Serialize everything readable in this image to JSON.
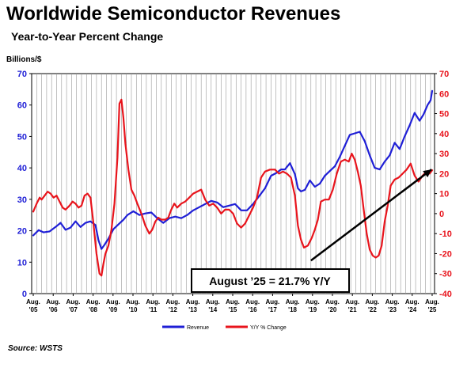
{
  "header": {
    "title": "Worldwide Semiconductor Revenues",
    "subtitle": "Year-to-Year Percent Change",
    "unit_label": "Billions/$"
  },
  "source": "Source: WSTS",
  "annotation": "August ’25 = 21.7% Y/Y",
  "colors": {
    "revenue": "#1f1fd6",
    "yoy": "#e8141c",
    "grid": "#9a9a9a",
    "left_axis": "#1f1fd6",
    "right_axis": "#e8141c"
  },
  "chart_data": {
    "type": "line",
    "xlim": [
      2005.5,
      2025.7
    ],
    "x_ticks": [
      {
        "x": 2005.58,
        "month": "Aug.",
        "year": "'05"
      },
      {
        "x": 2006.58,
        "month": "Aug.",
        "year": "'06"
      },
      {
        "x": 2007.58,
        "month": "Aug.",
        "year": "'07"
      },
      {
        "x": 2008.58,
        "month": "Aug.",
        "year": "'08"
      },
      {
        "x": 2009.58,
        "month": "Aug.",
        "year": "'09"
      },
      {
        "x": 2010.58,
        "month": "Aug.",
        "year": "'10"
      },
      {
        "x": 2011.58,
        "month": "Aug.",
        "year": "'11"
      },
      {
        "x": 2012.58,
        "month": "Aug.",
        "year": "'12"
      },
      {
        "x": 2013.58,
        "month": "Aug.",
        "year": "'13"
      },
      {
        "x": 2014.58,
        "month": "Aug.",
        "year": "'14"
      },
      {
        "x": 2015.58,
        "month": "Aug.",
        "year": "'15"
      },
      {
        "x": 2016.58,
        "month": "Aug.",
        "year": "'16"
      },
      {
        "x": 2017.58,
        "month": "Aug.",
        "year": "'17"
      },
      {
        "x": 2018.58,
        "month": "Aug.",
        "year": "'18"
      },
      {
        "x": 2019.58,
        "month": "Aug.",
        "year": "'19"
      },
      {
        "x": 2020.58,
        "month": "Aug.",
        "year": "'20"
      },
      {
        "x": 2021.58,
        "month": "Aug.",
        "year": "'21"
      },
      {
        "x": 2022.58,
        "month": "Aug.",
        "year": "'22"
      },
      {
        "x": 2023.58,
        "month": "Aug.",
        "year": "'23"
      },
      {
        "x": 2024.58,
        "month": "Aug.",
        "year": "'24"
      },
      {
        "x": 2025.58,
        "month": "Aug.",
        "year": "'25"
      }
    ],
    "y_left": {
      "range": [
        0,
        70
      ],
      "ticks": [
        0,
        10,
        20,
        30,
        40,
        50,
        60,
        70
      ]
    },
    "y_right": {
      "range": [
        -40,
        70
      ],
      "ticks": [
        -40,
        -30,
        -20,
        -10,
        0,
        10,
        20,
        30,
        40,
        50,
        60,
        70
      ]
    },
    "grid": "vertical",
    "legend": {
      "placement": "bottom-center",
      "entries": [
        "Revenue",
        "Y/Y % Change"
      ]
    },
    "series": [
      {
        "name": "Revenue",
        "axis": "left",
        "x": [
          2005.58,
          2005.85,
          2006.1,
          2006.4,
          2006.7,
          2006.95,
          2007.2,
          2007.45,
          2007.7,
          2007.95,
          2008.2,
          2008.45,
          2008.7,
          2008.85,
          2009.0,
          2009.15,
          2009.35,
          2009.6,
          2009.85,
          2010.1,
          2010.3,
          2010.6,
          2010.9,
          2011.2,
          2011.5,
          2011.8,
          2012.1,
          2012.4,
          2012.7,
          2013.0,
          2013.3,
          2013.6,
          2013.9,
          2014.2,
          2014.5,
          2014.8,
          2015.1,
          2015.4,
          2015.7,
          2016.0,
          2016.3,
          2016.6,
          2016.9,
          2017.2,
          2017.5,
          2017.8,
          2018.0,
          2018.2,
          2018.45,
          2018.7,
          2018.85,
          2019.0,
          2019.2,
          2019.45,
          2019.7,
          2019.95,
          2020.2,
          2020.45,
          2020.7,
          2020.95,
          2021.2,
          2021.45,
          2021.7,
          2021.95,
          2022.2,
          2022.45,
          2022.7,
          2022.95,
          2023.2,
          2023.45,
          2023.7,
          2023.95,
          2024.2,
          2024.45,
          2024.7,
          2024.95,
          2025.15,
          2025.35,
          2025.5,
          2025.58
        ],
        "values": [
          18.5,
          20.2,
          19.5,
          19.8,
          21.2,
          22.5,
          20.3,
          21.0,
          23.0,
          21.2,
          22.5,
          23.0,
          21.8,
          17.0,
          14.2,
          15.5,
          17.5,
          20.5,
          22.0,
          23.5,
          25.0,
          26.2,
          25.0,
          25.5,
          25.8,
          24.0,
          22.5,
          24.0,
          24.5,
          24.0,
          25.0,
          26.5,
          27.5,
          28.5,
          29.5,
          29.0,
          27.5,
          28.0,
          28.5,
          26.5,
          26.5,
          28.5,
          31.0,
          33.5,
          37.5,
          38.5,
          39.5,
          39.5,
          41.5,
          38.0,
          33.5,
          32.5,
          33.0,
          36.0,
          34.0,
          35.0,
          37.5,
          39.0,
          40.5,
          43.5,
          47.0,
          50.5,
          51.0,
          51.5,
          48.5,
          44.0,
          40.0,
          39.5,
          42.0,
          44.0,
          48.0,
          46.0,
          50.0,
          53.5,
          57.5,
          55.0,
          57.0,
          60.0,
          61.5,
          64.5
        ]
      },
      {
        "name": "Y/Y % Change",
        "axis": "right",
        "x": [
          2005.58,
          2005.75,
          2005.9,
          2006.0,
          2006.15,
          2006.3,
          2006.45,
          2006.6,
          2006.75,
          2006.9,
          2007.05,
          2007.2,
          2007.4,
          2007.55,
          2007.7,
          2007.85,
          2008.0,
          2008.15,
          2008.3,
          2008.45,
          2008.6,
          2008.75,
          2008.9,
          2009.0,
          2009.1,
          2009.2,
          2009.35,
          2009.5,
          2009.65,
          2009.8,
          2009.9,
          2010.0,
          2010.1,
          2010.2,
          2010.35,
          2010.5,
          2010.65,
          2010.8,
          2011.0,
          2011.2,
          2011.4,
          2011.55,
          2011.7,
          2011.85,
          2012.0,
          2012.2,
          2012.35,
          2012.5,
          2012.65,
          2012.8,
          2013.0,
          2013.2,
          2013.4,
          2013.6,
          2013.8,
          2014.0,
          2014.2,
          2014.4,
          2014.6,
          2014.8,
          2015.0,
          2015.2,
          2015.4,
          2015.6,
          2015.8,
          2016.0,
          2016.2,
          2016.4,
          2016.6,
          2016.8,
          2017.0,
          2017.2,
          2017.45,
          2017.7,
          2017.9,
          2018.1,
          2018.3,
          2018.5,
          2018.7,
          2018.85,
          2019.0,
          2019.15,
          2019.35,
          2019.55,
          2019.7,
          2019.85,
          2020.0,
          2020.2,
          2020.4,
          2020.6,
          2020.8,
          2021.0,
          2021.2,
          2021.4,
          2021.55,
          2021.7,
          2021.85,
          2022.0,
          2022.15,
          2022.3,
          2022.45,
          2022.6,
          2022.75,
          2022.9,
          2023.05,
          2023.2,
          2023.35,
          2023.5,
          2023.7,
          2023.9,
          2024.1,
          2024.3,
          2024.5,
          2024.7,
          2024.9,
          2025.1,
          2025.3,
          2025.45,
          2025.58
        ],
        "values": [
          1,
          5,
          8,
          7,
          9,
          11,
          10,
          8,
          9,
          6,
          3,
          2,
          4,
          6,
          5,
          3,
          4,
          9,
          10,
          8,
          -5,
          -20,
          -30,
          -31,
          -25,
          -20,
          -16,
          -8,
          5,
          28,
          55,
          57,
          48,
          35,
          22,
          12,
          9,
          5,
          0,
          -6,
          -10,
          -8,
          -4,
          -2,
          -3,
          -3,
          -2,
          2,
          5,
          3,
          5,
          6,
          8,
          10,
          11,
          12,
          7,
          4,
          5,
          3,
          0,
          2,
          2,
          0,
          -5,
          -7,
          -5,
          -1,
          3,
          8,
          18,
          21,
          22,
          22,
          20,
          21,
          20,
          18,
          9,
          -6,
          -13,
          -17,
          -16,
          -12,
          -8,
          -3,
          6,
          7,
          7,
          12,
          20,
          26,
          27,
          26,
          30,
          27,
          21,
          14,
          2,
          -10,
          -18,
          -21,
          -22,
          -21,
          -16,
          -4,
          4,
          14,
          17,
          18,
          20,
          22,
          25,
          19,
          16,
          19,
          21,
          20,
          21.7
        ]
      }
    ],
    "trend_line": {
      "x": [
        2019.5,
        2025.55
      ],
      "y_left": [
        10.5,
        39.5
      ]
    },
    "annotations": [
      "August ’25 = 21.7% Y/Y"
    ]
  }
}
